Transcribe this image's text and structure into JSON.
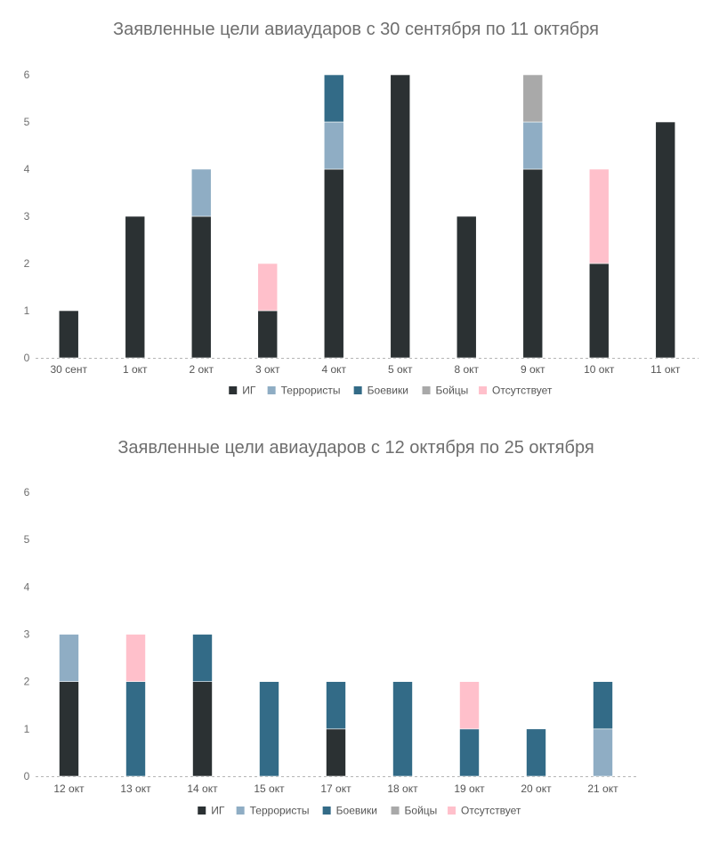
{
  "colors": {
    "ИГ": "#2b3133",
    "Террористы": "#8fadc4",
    "Боевики": "#336b87",
    "Бойцы": "#a9a9a9",
    "Отсутствует": "#ffc0cb"
  },
  "chart_data": [
    {
      "type": "bar",
      "stacked": true,
      "title": "Заявленные цели авиаударов с 30 сентября по 11 октября",
      "categories": [
        "30 сент",
        "1 окт",
        "2 окт",
        "3 окт",
        "4 окт",
        "5 окт",
        "8 окт",
        "9 окт",
        "10 окт",
        "11 окт"
      ],
      "series": [
        {
          "name": "ИГ",
          "values": [
            1,
            3,
            3,
            1,
            4,
            6,
            3,
            4,
            2,
            5
          ]
        },
        {
          "name": "Террористы",
          "values": [
            0,
            0,
            1,
            0,
            1,
            0,
            0,
            1,
            0,
            0
          ]
        },
        {
          "name": "Боевики",
          "values": [
            0,
            0,
            0,
            0,
            1,
            0,
            0,
            0,
            0,
            0
          ]
        },
        {
          "name": "Бойцы",
          "values": [
            0,
            0,
            0,
            0,
            0,
            0,
            0,
            1,
            0,
            0
          ]
        },
        {
          "name": "Отсутствует",
          "values": [
            0,
            0,
            0,
            1,
            0,
            0,
            0,
            0,
            2,
            0
          ]
        }
      ],
      "yticks": [
        0,
        1,
        2,
        3,
        4,
        5,
        6
      ],
      "ylim": [
        0,
        6
      ],
      "grid": false,
      "legend": "bottom"
    },
    {
      "type": "bar",
      "stacked": true,
      "title": "Заявленные цели авиаударов с 12 октября по 25 октября",
      "categories": [
        "12 окт",
        "13 окт",
        "14 окт",
        "15 окт",
        "17 окт",
        "18 окт",
        "19 окт",
        "20 окт",
        "21 окт"
      ],
      "series": [
        {
          "name": "ИГ",
          "values": [
            2,
            0,
            2,
            0,
            1,
            0,
            0,
            0,
            0
          ]
        },
        {
          "name": "Террористы",
          "values": [
            1,
            0,
            0,
            0,
            0,
            0,
            0,
            0,
            1
          ]
        },
        {
          "name": "Боевики",
          "values": [
            0,
            2,
            1,
            2,
            1,
            2,
            1,
            1,
            1
          ]
        },
        {
          "name": "Бойцы",
          "values": [
            0,
            0,
            0,
            0,
            0,
            0,
            0,
            0,
            0
          ]
        },
        {
          "name": "Отсутствует",
          "values": [
            0,
            1,
            0,
            0,
            0,
            0,
            1,
            0,
            0
          ]
        }
      ],
      "yticks": [
        0,
        1,
        2,
        3,
        4,
        5,
        6
      ],
      "ylim": [
        0,
        6
      ],
      "grid": false,
      "legend": "bottom"
    }
  ]
}
